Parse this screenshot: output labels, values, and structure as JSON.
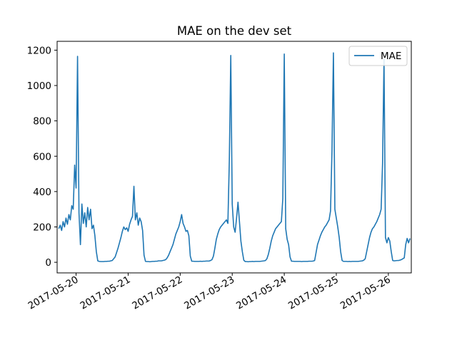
{
  "chart_data": {
    "type": "line",
    "title": "MAE on the dev set",
    "xlabel": "",
    "ylabel": "",
    "x_start": "2017-05-19 16:00",
    "x_end": "2017-05-26 10:00",
    "xlim": [
      "2017-05-19 15:15",
      "2017-05-26 10:35"
    ],
    "ylim": [
      -60,
      1250
    ],
    "x_ticks": [
      "2017-05-20",
      "2017-05-21",
      "2017-05-22",
      "2017-05-23",
      "2017-05-24",
      "2017-05-25",
      "2017-05-26"
    ],
    "y_ticks": [
      0,
      200,
      400,
      600,
      800,
      1000,
      1200
    ],
    "grid": false,
    "legend": "top-right",
    "series": [
      {
        "name": "MAE",
        "color": "#1f77b4",
        "values": [
          190,
          210,
          180,
          230,
          200,
          250,
          215,
          270,
          240,
          320,
          300,
          550,
          420,
          1165,
          280,
          100,
          330,
          220,
          280,
          200,
          310,
          240,
          300,
          190,
          210,
          150,
          60,
          8,
          5,
          4,
          4,
          4,
          5,
          5,
          6,
          6,
          8,
          10,
          20,
          30,
          55,
          80,
          110,
          140,
          175,
          200,
          185,
          195,
          175,
          215,
          240,
          260,
          430,
          240,
          280,
          210,
          250,
          230,
          180,
          40,
          5,
          4,
          4,
          3,
          4,
          5,
          5,
          6,
          6,
          8,
          8,
          8,
          10,
          12,
          15,
          25,
          40,
          60,
          80,
          100,
          130,
          160,
          180,
          200,
          230,
          270,
          220,
          200,
          175,
          180,
          150,
          35,
          6,
          6,
          5,
          5,
          5,
          5,
          6,
          5,
          6,
          6,
          7,
          7,
          7,
          10,
          15,
          35,
          80,
          130,
          160,
          185,
          200,
          210,
          220,
          230,
          240,
          220,
          580,
          1170,
          330,
          200,
          170,
          250,
          340,
          230,
          120,
          60,
          12,
          4,
          4,
          3,
          4,
          4,
          5,
          4,
          5,
          5,
          5,
          5,
          6,
          7,
          8,
          10,
          20,
          45,
          80,
          120,
          150,
          170,
          190,
          200,
          210,
          220,
          230,
          360,
          1178,
          190,
          130,
          100,
          30,
          6,
          6,
          5,
          5,
          5,
          5,
          5,
          4,
          5,
          5,
          5,
          5,
          6,
          6,
          6,
          7,
          10,
          55,
          100,
          125,
          150,
          170,
          185,
          200,
          210,
          225,
          240,
          290,
          630,
          1185,
          300,
          250,
          200,
          140,
          60,
          10,
          5,
          5,
          5,
          4,
          5,
          4,
          5,
          5,
          5,
          5,
          5,
          6,
          7,
          8,
          12,
          20,
          60,
          100,
          140,
          170,
          190,
          200,
          215,
          230,
          250,
          270,
          300,
          560,
          1150,
          140,
          110,
          140,
          120,
          60,
          10,
          8,
          9,
          10,
          10,
          12,
          15,
          20,
          25,
          100,
          135,
          110,
          135
        ]
      }
    ]
  }
}
